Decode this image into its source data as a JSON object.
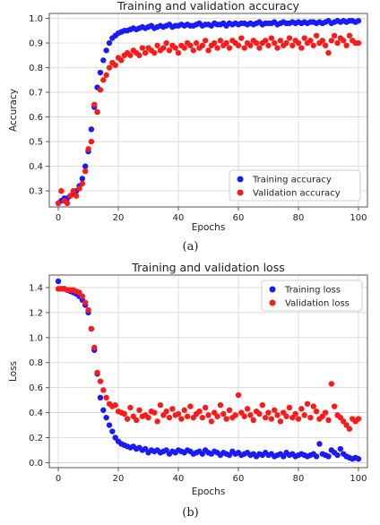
{
  "chart_data": [
    {
      "type": "scatter",
      "title": "Training and validation accuracy",
      "xlabel": "Epochs",
      "ylabel": "Accuracy",
      "xlim": [
        -3,
        103
      ],
      "ylim": [
        0.235,
        1.02
      ],
      "xticks": [
        0,
        20,
        40,
        60,
        80,
        100
      ],
      "yticks": [
        0.3,
        0.4,
        0.5,
        0.6,
        0.7,
        0.8,
        0.9,
        1.0
      ],
      "ytick_labels": [
        "0.3",
        "0.4",
        "0.5",
        "0.6",
        "0.7",
        "0.8",
        "0.9",
        "1.0"
      ],
      "grid": true,
      "legend_position": "lower-right",
      "caption": "(a)",
      "series": [
        {
          "name": "Training accuracy",
          "color": "#1a1aff",
          "x": [
            0,
            1,
            2,
            3,
            4,
            5,
            6,
            7,
            8,
            9,
            10,
            11,
            12,
            13,
            14,
            15,
            16,
            17,
            18,
            19,
            20,
            21,
            22,
            23,
            24,
            25,
            26,
            27,
            28,
            29,
            30,
            31,
            32,
            33,
            34,
            35,
            36,
            37,
            38,
            39,
            40,
            41,
            42,
            43,
            44,
            45,
            46,
            47,
            48,
            49,
            50,
            51,
            52,
            53,
            54,
            55,
            56,
            57,
            58,
            59,
            60,
            61,
            62,
            63,
            64,
            65,
            66,
            67,
            68,
            69,
            70,
            71,
            72,
            73,
            74,
            75,
            76,
            77,
            78,
            79,
            80,
            81,
            82,
            83,
            84,
            85,
            86,
            87,
            88,
            89,
            90,
            91,
            92,
            93,
            94,
            95,
            96,
            97,
            98,
            99,
            100
          ],
          "values": [
            0.25,
            0.26,
            0.27,
            0.27,
            0.28,
            0.29,
            0.3,
            0.32,
            0.35,
            0.4,
            0.46,
            0.55,
            0.64,
            0.72,
            0.78,
            0.83,
            0.87,
            0.9,
            0.92,
            0.93,
            0.94,
            0.945,
            0.95,
            0.95,
            0.955,
            0.96,
            0.955,
            0.96,
            0.965,
            0.96,
            0.965,
            0.97,
            0.96,
            0.965,
            0.97,
            0.965,
            0.97,
            0.975,
            0.965,
            0.97,
            0.97,
            0.975,
            0.97,
            0.975,
            0.97,
            0.97,
            0.975,
            0.98,
            0.97,
            0.975,
            0.975,
            0.97,
            0.98,
            0.975,
            0.975,
            0.98,
            0.97,
            0.98,
            0.975,
            0.98,
            0.975,
            0.98,
            0.98,
            0.975,
            0.98,
            0.975,
            0.98,
            0.985,
            0.975,
            0.98,
            0.98,
            0.98,
            0.985,
            0.975,
            0.98,
            0.985,
            0.98,
            0.98,
            0.985,
            0.98,
            0.985,
            0.98,
            0.985,
            0.98,
            0.985,
            0.985,
            0.98,
            0.985,
            0.98,
            0.985,
            0.99,
            0.98,
            0.985,
            0.99,
            0.985,
            0.99,
            0.985,
            0.99,
            0.99,
            0.985,
            0.99
          ]
        },
        {
          "name": "Validation accuracy",
          "color": "#ff1a1a",
          "x": [
            0,
            1,
            2,
            3,
            4,
            5,
            6,
            7,
            8,
            9,
            10,
            11,
            12,
            13,
            14,
            15,
            16,
            17,
            18,
            19,
            20,
            21,
            22,
            23,
            24,
            25,
            26,
            27,
            28,
            29,
            30,
            31,
            32,
            33,
            34,
            35,
            36,
            37,
            38,
            39,
            40,
            41,
            42,
            43,
            44,
            45,
            46,
            47,
            48,
            49,
            50,
            51,
            52,
            53,
            54,
            55,
            56,
            57,
            58,
            59,
            60,
            61,
            62,
            63,
            64,
            65,
            66,
            67,
            68,
            69,
            70,
            71,
            72,
            73,
            74,
            75,
            76,
            77,
            78,
            79,
            80,
            81,
            82,
            83,
            84,
            85,
            86,
            87,
            88,
            89,
            90,
            91,
            92,
            93,
            94,
            95,
            96,
            97,
            98,
            99,
            100
          ],
          "values": [
            0.25,
            0.3,
            0.26,
            0.25,
            0.28,
            0.3,
            0.28,
            0.31,
            0.33,
            0.38,
            0.47,
            0.5,
            0.65,
            0.62,
            0.71,
            0.75,
            0.77,
            0.8,
            0.82,
            0.81,
            0.84,
            0.83,
            0.85,
            0.86,
            0.85,
            0.87,
            0.86,
            0.85,
            0.88,
            0.86,
            0.88,
            0.87,
            0.86,
            0.89,
            0.87,
            0.88,
            0.9,
            0.87,
            0.89,
            0.88,
            0.86,
            0.89,
            0.88,
            0.9,
            0.89,
            0.87,
            0.9,
            0.88,
            0.89,
            0.91,
            0.87,
            0.89,
            0.9,
            0.88,
            0.91,
            0.89,
            0.9,
            0.88,
            0.91,
            0.9,
            0.89,
            0.92,
            0.88,
            0.9,
            0.89,
            0.91,
            0.9,
            0.88,
            0.9,
            0.91,
            0.89,
            0.92,
            0.9,
            0.88,
            0.91,
            0.89,
            0.9,
            0.92,
            0.89,
            0.91,
            0.9,
            0.88,
            0.92,
            0.9,
            0.91,
            0.89,
            0.93,
            0.9,
            0.91,
            0.89,
            0.86,
            0.91,
            0.93,
            0.9,
            0.92,
            0.91,
            0.89,
            0.93,
            0.91,
            0.9,
            0.9
          ]
        }
      ]
    },
    {
      "type": "scatter",
      "title": "Training and validation loss",
      "xlabel": "Epochs",
      "ylabel": "Loss",
      "xlim": [
        -3,
        103
      ],
      "ylim": [
        -0.04,
        1.5
      ],
      "xticks": [
        0,
        20,
        40,
        60,
        80,
        100
      ],
      "yticks": [
        0.0,
        0.2,
        0.4,
        0.6,
        0.8,
        1.0,
        1.2,
        1.4
      ],
      "ytick_labels": [
        "0.0",
        "0.2",
        "0.4",
        "0.6",
        "0.8",
        "1.0",
        "1.2",
        "1.4"
      ],
      "grid": true,
      "legend_position": "upper-right",
      "caption": "(b)",
      "series": [
        {
          "name": "Training loss",
          "color": "#1a1aff",
          "x": [
            0,
            1,
            2,
            3,
            4,
            5,
            6,
            7,
            8,
            9,
            10,
            11,
            12,
            13,
            14,
            15,
            16,
            17,
            18,
            19,
            20,
            21,
            22,
            23,
            24,
            25,
            26,
            27,
            28,
            29,
            30,
            31,
            32,
            33,
            34,
            35,
            36,
            37,
            38,
            39,
            40,
            41,
            42,
            43,
            44,
            45,
            46,
            47,
            48,
            49,
            50,
            51,
            52,
            53,
            54,
            55,
            56,
            57,
            58,
            59,
            60,
            61,
            62,
            63,
            64,
            65,
            66,
            67,
            68,
            69,
            70,
            71,
            72,
            73,
            74,
            75,
            76,
            77,
            78,
            79,
            80,
            81,
            82,
            83,
            84,
            85,
            86,
            87,
            88,
            89,
            90,
            91,
            92,
            93,
            94,
            95,
            96,
            97,
            98,
            99,
            100
          ],
          "values": [
            1.45,
            1.39,
            1.39,
            1.38,
            1.37,
            1.36,
            1.35,
            1.33,
            1.3,
            1.26,
            1.2,
            1.07,
            0.9,
            0.71,
            0.52,
            0.42,
            0.36,
            0.3,
            0.25,
            0.2,
            0.17,
            0.15,
            0.14,
            0.13,
            0.12,
            0.13,
            0.11,
            0.12,
            0.1,
            0.11,
            0.08,
            0.1,
            0.09,
            0.1,
            0.08,
            0.09,
            0.1,
            0.07,
            0.09,
            0.08,
            0.1,
            0.09,
            0.08,
            0.1,
            0.09,
            0.07,
            0.08,
            0.09,
            0.07,
            0.1,
            0.08,
            0.07,
            0.09,
            0.08,
            0.06,
            0.08,
            0.07,
            0.06,
            0.09,
            0.07,
            0.08,
            0.06,
            0.07,
            0.08,
            0.06,
            0.07,
            0.05,
            0.07,
            0.06,
            0.08,
            0.06,
            0.07,
            0.05,
            0.06,
            0.07,
            0.05,
            0.08,
            0.06,
            0.07,
            0.05,
            0.06,
            0.07,
            0.06,
            0.05,
            0.06,
            0.07,
            0.05,
            0.15,
            0.07,
            0.06,
            0.05,
            0.1,
            0.08,
            0.06,
            0.11,
            0.07,
            0.05,
            0.04,
            0.03,
            0.04,
            0.03
          ]
        },
        {
          "name": "Validation loss",
          "color": "#ff1a1a",
          "x": [
            0,
            1,
            2,
            3,
            4,
            5,
            6,
            7,
            8,
            9,
            10,
            11,
            12,
            13,
            14,
            15,
            16,
            17,
            18,
            19,
            20,
            21,
            22,
            23,
            24,
            25,
            26,
            27,
            28,
            29,
            30,
            31,
            32,
            33,
            34,
            35,
            36,
            37,
            38,
            39,
            40,
            41,
            42,
            43,
            44,
            45,
            46,
            47,
            48,
            49,
            50,
            51,
            52,
            53,
            54,
            55,
            56,
            57,
            58,
            59,
            60,
            61,
            62,
            63,
            64,
            65,
            66,
            67,
            68,
            69,
            70,
            71,
            72,
            73,
            74,
            75,
            76,
            77,
            78,
            79,
            80,
            81,
            82,
            83,
            84,
            85,
            86,
            87,
            88,
            89,
            90,
            91,
            92,
            93,
            94,
            95,
            96,
            97,
            98,
            99,
            100
          ],
          "values": [
            1.39,
            1.39,
            1.39,
            1.38,
            1.38,
            1.38,
            1.37,
            1.36,
            1.33,
            1.28,
            1.22,
            1.07,
            0.92,
            0.72,
            0.65,
            0.58,
            0.52,
            0.47,
            0.45,
            0.46,
            0.41,
            0.4,
            0.39,
            0.35,
            0.44,
            0.37,
            0.34,
            0.42,
            0.37,
            0.38,
            0.36,
            0.41,
            0.4,
            0.33,
            0.46,
            0.38,
            0.41,
            0.36,
            0.43,
            0.38,
            0.39,
            0.35,
            0.42,
            0.37,
            0.45,
            0.36,
            0.39,
            0.41,
            0.36,
            0.44,
            0.38,
            0.33,
            0.4,
            0.37,
            0.46,
            0.39,
            0.35,
            0.42,
            0.36,
            0.38,
            0.54,
            0.4,
            0.37,
            0.43,
            0.38,
            0.34,
            0.41,
            0.39,
            0.46,
            0.36,
            0.4,
            0.35,
            0.42,
            0.38,
            0.33,
            0.4,
            0.37,
            0.44,
            0.36,
            0.39,
            0.35,
            0.43,
            0.38,
            0.47,
            0.36,
            0.45,
            0.41,
            0.35,
            0.37,
            0.4,
            0.34,
            0.63,
            0.45,
            0.38,
            0.36,
            0.33,
            0.3,
            0.27,
            0.35,
            0.33,
            0.35
          ]
        }
      ]
    }
  ]
}
